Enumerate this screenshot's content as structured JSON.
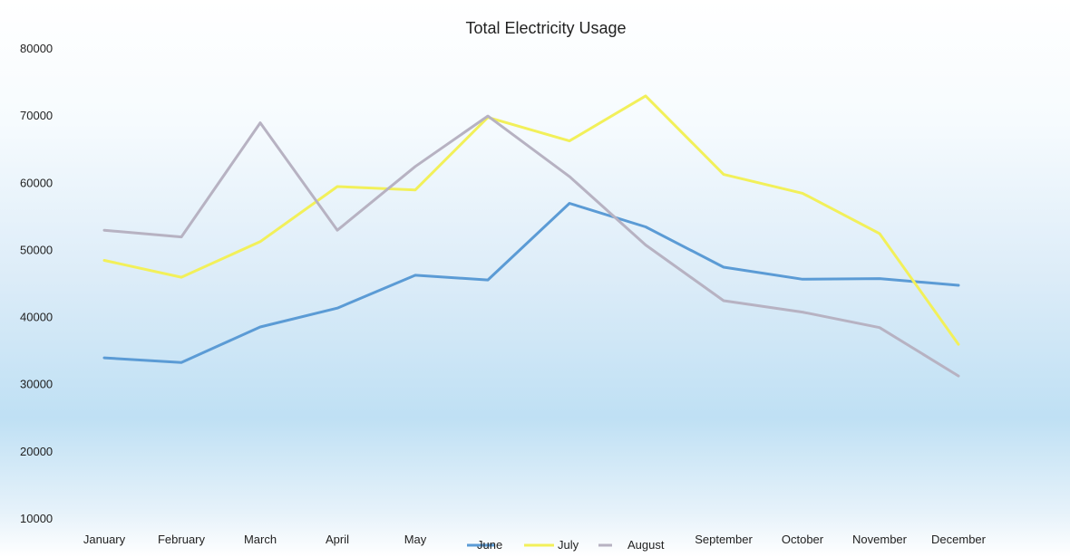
{
  "chart_data": {
    "type": "line",
    "title": "Total Electricity Usage",
    "categories": [
      "January",
      "February",
      "March",
      "April",
      "May",
      "June",
      "July",
      "August",
      "September",
      "October",
      "November",
      "December"
    ],
    "yticks": [
      "80000",
      "70000",
      "60000",
      "50000",
      "40000",
      "30000",
      "20000",
      "10000"
    ],
    "ylim": [
      10000,
      80000
    ],
    "grid": false,
    "legend_position": "bottom-center, inline with category labels",
    "series": [
      {
        "name": "June",
        "color": "#5b9bd5",
        "values": [
          34000,
          33300,
          38600,
          41400,
          46300,
          45600,
          57000,
          53500,
          47500,
          45700,
          45800,
          44800
        ]
      },
      {
        "name": "July",
        "color": "#f2f05a",
        "values": [
          48500,
          46000,
          51300,
          59500,
          59000,
          69800,
          66300,
          73000,
          61300,
          58500,
          52500,
          36000
        ]
      },
      {
        "name": "August",
        "color": "#b7b2c2",
        "values": [
          53000,
          52000,
          69000,
          53000,
          62500,
          70000,
          61000,
          50800,
          42500,
          40800,
          38500,
          31300
        ]
      }
    ]
  }
}
